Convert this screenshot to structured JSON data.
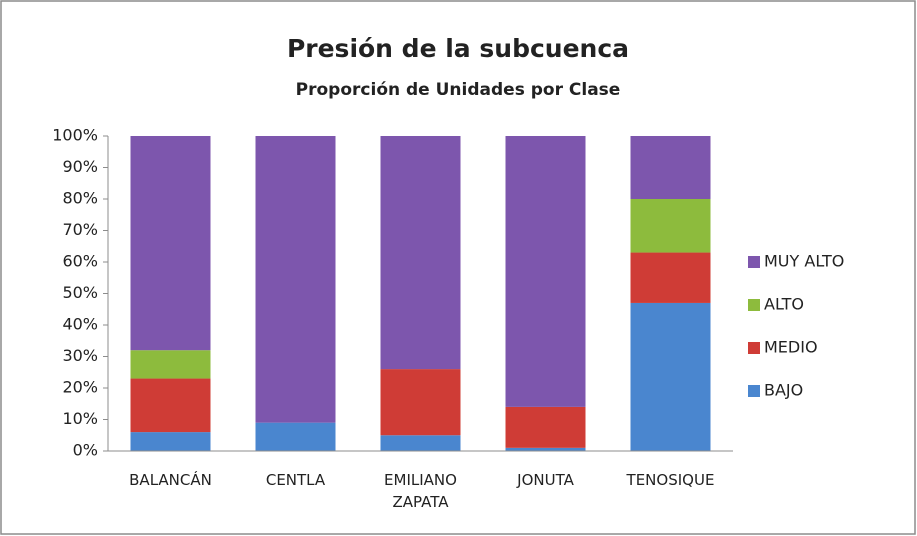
{
  "chart_data": {
    "type": "stacked_bar_100",
    "title": "Presión de la subcuenca",
    "subtitle": "Proporción de Unidades por Clase",
    "categories": [
      "BALANCÁN",
      "CENTLA",
      "EMILIANO ZAPATA",
      "JONUTA",
      "TENOSIQUE"
    ],
    "series": [
      {
        "name": "BAJO",
        "color": "#4a86cf",
        "values": [
          6,
          9,
          5,
          1,
          47
        ]
      },
      {
        "name": "MEDIO",
        "color": "#cf3c36",
        "values": [
          17,
          0,
          21,
          13,
          16
        ]
      },
      {
        "name": "ALTO",
        "color": "#8dbb3d",
        "values": [
          9,
          0,
          0,
          0,
          17
        ]
      },
      {
        "name": "MUY ALTO",
        "color": "#7d56ad",
        "values": [
          68,
          91,
          74,
          86,
          20
        ]
      }
    ],
    "ylim": [
      0,
      100
    ],
    "yticks": [
      {
        "value": 0,
        "label": "0%"
      },
      {
        "value": 10,
        "label": "10%"
      },
      {
        "value": 20,
        "label": "20%"
      },
      {
        "value": 30,
        "label": "30%"
      },
      {
        "value": 40,
        "label": "40%"
      },
      {
        "value": 50,
        "label": "50%"
      },
      {
        "value": 60,
        "label": "60%"
      },
      {
        "value": 70,
        "label": "70%"
      },
      {
        "value": 80,
        "label": "80%"
      },
      {
        "value": 90,
        "label": "90%"
      },
      {
        "value": 100,
        "label": "100%"
      }
    ],
    "grid": false,
    "legend": "right"
  }
}
